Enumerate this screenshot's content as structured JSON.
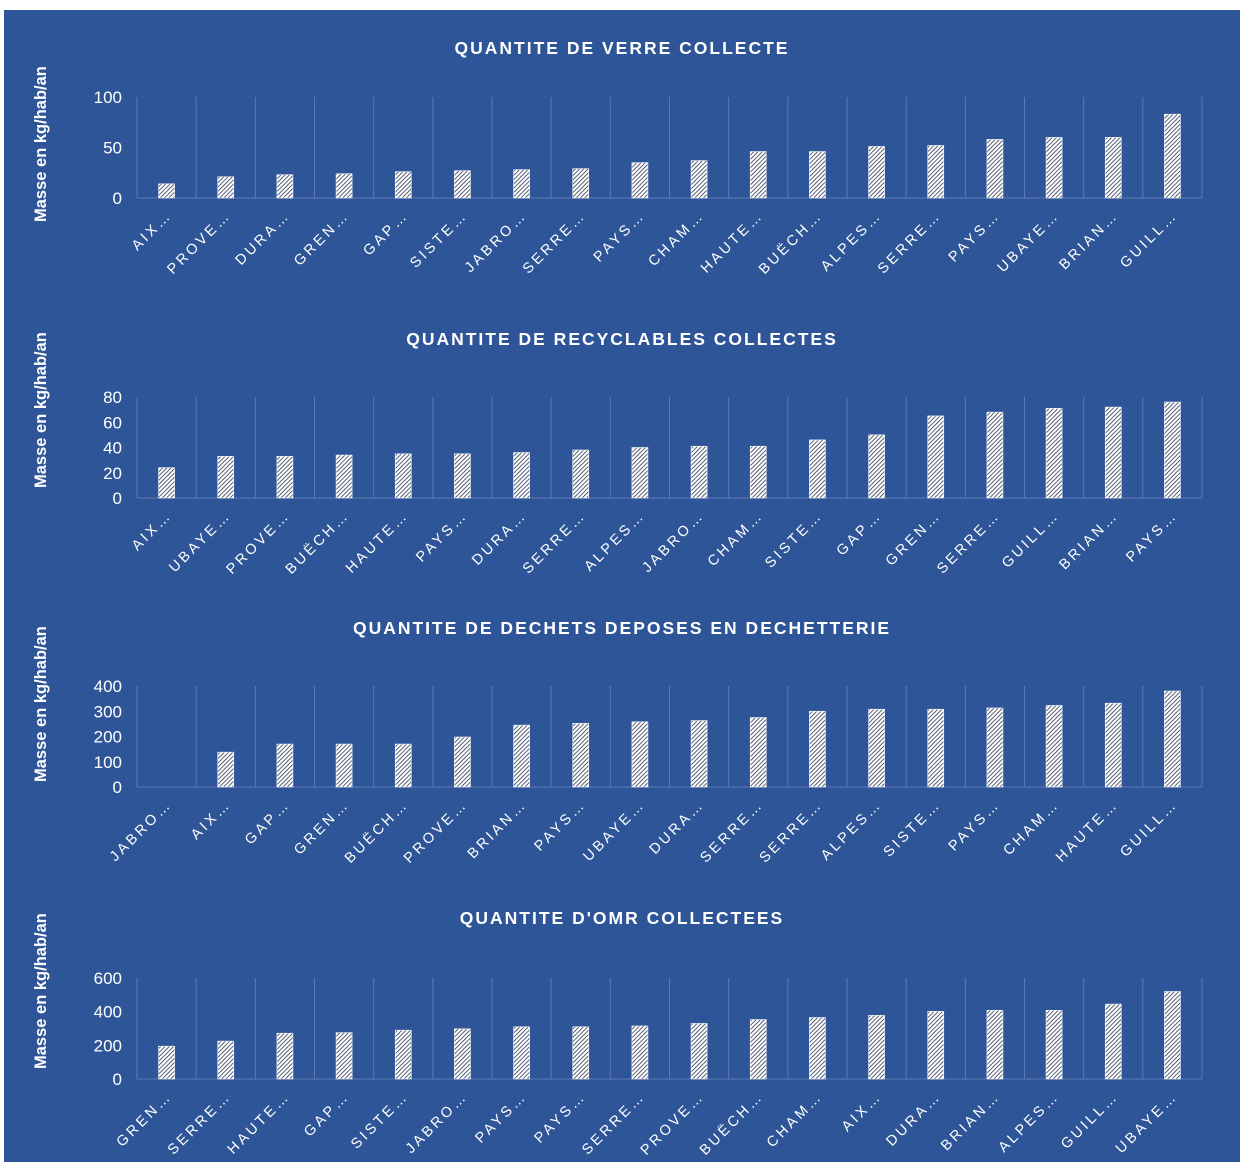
{
  "colors": {
    "background": "#2e5597",
    "text": "#ffffff",
    "grid": "#5e79b4",
    "bar_fill": "#ffffff",
    "bar_hatch": "#1f2a4a"
  },
  "chart_data": [
    {
      "type": "bar",
      "title": "QUANTITE DE VERRE COLLECTE",
      "ylabel": "Masse en kg/hab/an",
      "xlabel": "",
      "ylim": [
        0,
        100
      ],
      "yticks": [
        0,
        50,
        100
      ],
      "categories": [
        "AIX…",
        "PROVE…",
        "DURA…",
        "GREN…",
        "GAP…",
        "SISTE…",
        "JABRO…",
        "SERRE…",
        "PAYS…",
        "CHAM…",
        "HAUTE…",
        "BUËCH…",
        "ALPES…",
        "SERRE…",
        "PAYS…",
        "UBAYE…",
        "BRIAN…",
        "GUILL…"
      ],
      "values": [
        14,
        21,
        23,
        24,
        26,
        27,
        28,
        29,
        35,
        37,
        46,
        46,
        51,
        52,
        58,
        60,
        60,
        83
      ],
      "grid": "vertical",
      "legend": "none"
    },
    {
      "type": "bar",
      "title": "QUANTITE DE RECYCLABLES COLLECTES",
      "ylabel": "Masse en kg/hab/an",
      "xlabel": "",
      "ylim": [
        0,
        80
      ],
      "yticks": [
        0,
        20,
        40,
        60,
        80
      ],
      "categories": [
        "AIX…",
        "UBAYE…",
        "PROVE…",
        "BUËCH…",
        "HAUTE…",
        "PAYS…",
        "DURA…",
        "SERRE…",
        "ALPES…",
        "JABRO…",
        "CHAM…",
        "SISTE…",
        "GAP…",
        "GREN…",
        "SERRE…",
        "GUILL…",
        "BRIAN…",
        "PAYS…"
      ],
      "values": [
        24,
        33,
        33,
        34,
        35,
        35,
        36,
        38,
        40,
        41,
        41,
        46,
        50,
        65,
        68,
        71,
        72,
        76
      ],
      "grid": "vertical",
      "legend": "none"
    },
    {
      "type": "bar",
      "title": "QUANTITE DE DECHETS DEPOSES EN DECHETTERIE",
      "ylabel": "Masse en kg/hab/an",
      "xlabel": "",
      "ylim": [
        0,
        400
      ],
      "yticks": [
        0,
        100,
        200,
        300,
        400
      ],
      "categories": [
        "JABRO…",
        "AIX…",
        "GAP…",
        "GREN…",
        "BUËCH…",
        "PROVE…",
        "BRIAN…",
        "PAYS…",
        "UBAYE…",
        "DURA…",
        "SERRE…",
        "SERRE…",
        "ALPES…",
        "SISTE…",
        "PAYS…",
        "CHAM…",
        "HAUTE…",
        "GUILL…"
      ],
      "values": [
        0,
        138,
        170,
        170,
        170,
        198,
        245,
        252,
        258,
        263,
        275,
        300,
        308,
        308,
        313,
        323,
        332,
        380
      ],
      "grid": "vertical",
      "legend": "none"
    },
    {
      "type": "bar",
      "title": "QUANTITE D'OMR COLLECTEES",
      "ylabel": "Masse en kg/hab/an",
      "xlabel": "",
      "ylim": [
        0,
        600
      ],
      "yticks": [
        0,
        200,
        400,
        600
      ],
      "categories": [
        "GREN…",
        "SERRE…",
        "HAUTE…",
        "GAP…",
        "SISTE…",
        "JABRO…",
        "PAYS…",
        "PAYS…",
        "SERRE…",
        "PROVE…",
        "BUËCH…",
        "CHAM…",
        "AIX…",
        "DURA…",
        "BRIAN…",
        "ALPES…",
        "GUILL…",
        "UBAYE…"
      ],
      "values": [
        195,
        225,
        272,
        275,
        290,
        298,
        310,
        310,
        315,
        330,
        353,
        365,
        378,
        402,
        408,
        408,
        445,
        520
      ],
      "grid": "vertical",
      "legend": "none"
    }
  ]
}
